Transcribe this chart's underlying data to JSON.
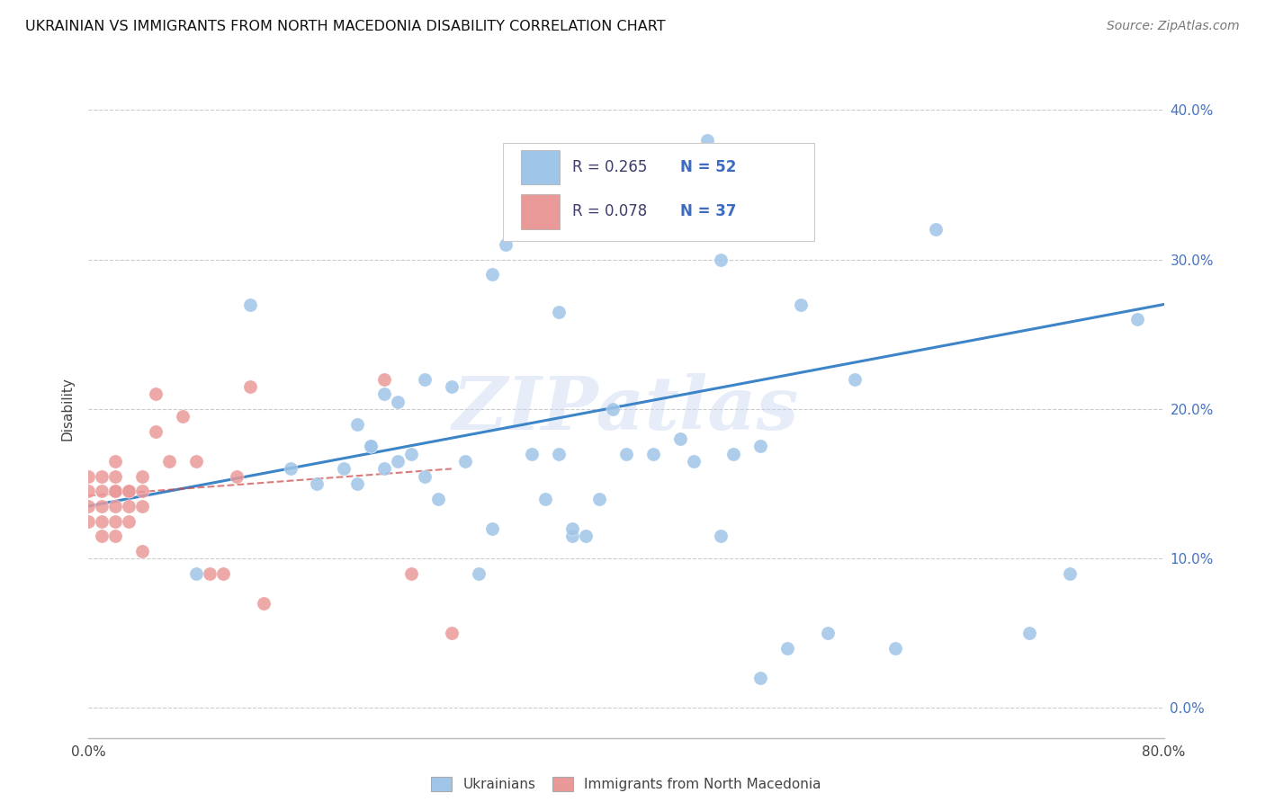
{
  "title": "UKRAINIAN VS IMMIGRANTS FROM NORTH MACEDONIA DISABILITY CORRELATION CHART",
  "source": "Source: ZipAtlas.com",
  "ylabel": "Disability",
  "watermark": "ZIPatlas",
  "xlim": [
    0.0,
    0.8
  ],
  "ylim": [
    -0.02,
    0.42
  ],
  "plot_ylim": [
    0.0,
    0.4
  ],
  "xtick_positions": [
    0.0,
    0.1,
    0.2,
    0.3,
    0.4,
    0.5,
    0.6,
    0.7,
    0.8
  ],
  "ytick_positions": [
    0.0,
    0.1,
    0.2,
    0.3,
    0.4
  ],
  "ytick_labels": [
    "0.0%",
    "10.0%",
    "20.0%",
    "30.0%",
    "40.0%"
  ],
  "blue_color": "#9fc5e8",
  "pink_color": "#ea9999",
  "blue_line_color": "#3d85c8",
  "pink_line_color": "#cc4444",
  "grid_color": "#cccccc",
  "label1": "Ukrainians",
  "label2": "Immigrants from North Macedonia",
  "blue_x": [
    0.08,
    0.12,
    0.15,
    0.17,
    0.19,
    0.2,
    0.2,
    0.21,
    0.21,
    0.22,
    0.22,
    0.23,
    0.23,
    0.24,
    0.25,
    0.25,
    0.26,
    0.27,
    0.28,
    0.29,
    0.3,
    0.3,
    0.31,
    0.33,
    0.34,
    0.35,
    0.36,
    0.36,
    0.38,
    0.39,
    0.4,
    0.43,
    0.44,
    0.45,
    0.46,
    0.47,
    0.48,
    0.5,
    0.52,
    0.53,
    0.55,
    0.57,
    0.6,
    0.63,
    0.7,
    0.73,
    0.78,
    0.35,
    0.42,
    0.5,
    0.37,
    0.47
  ],
  "blue_y": [
    0.09,
    0.27,
    0.16,
    0.15,
    0.16,
    0.15,
    0.19,
    0.175,
    0.175,
    0.16,
    0.21,
    0.165,
    0.205,
    0.17,
    0.155,
    0.22,
    0.14,
    0.215,
    0.165,
    0.09,
    0.12,
    0.29,
    0.31,
    0.17,
    0.14,
    0.265,
    0.115,
    0.12,
    0.14,
    0.2,
    0.17,
    0.35,
    0.18,
    0.165,
    0.38,
    0.3,
    0.17,
    0.02,
    0.04,
    0.27,
    0.05,
    0.22,
    0.04,
    0.32,
    0.05,
    0.09,
    0.26,
    0.17,
    0.17,
    0.175,
    0.115,
    0.115
  ],
  "pink_x": [
    0.0,
    0.0,
    0.0,
    0.0,
    0.01,
    0.01,
    0.01,
    0.01,
    0.01,
    0.02,
    0.02,
    0.02,
    0.02,
    0.02,
    0.02,
    0.02,
    0.03,
    0.03,
    0.03,
    0.03,
    0.04,
    0.04,
    0.04,
    0.04,
    0.05,
    0.05,
    0.06,
    0.07,
    0.08,
    0.09,
    0.1,
    0.11,
    0.12,
    0.13,
    0.22,
    0.24,
    0.27
  ],
  "pink_y": [
    0.155,
    0.145,
    0.135,
    0.125,
    0.155,
    0.145,
    0.135,
    0.125,
    0.115,
    0.165,
    0.155,
    0.145,
    0.145,
    0.135,
    0.125,
    0.115,
    0.145,
    0.145,
    0.135,
    0.125,
    0.155,
    0.145,
    0.135,
    0.105,
    0.21,
    0.185,
    0.165,
    0.195,
    0.165,
    0.09,
    0.09,
    0.155,
    0.215,
    0.07,
    0.22,
    0.09,
    0.05
  ],
  "blue_trend_x": [
    0.0,
    0.8
  ],
  "blue_trend_y": [
    0.135,
    0.27
  ],
  "pink_trend_x": [
    0.0,
    0.27
  ],
  "pink_trend_y": [
    0.142,
    0.16
  ]
}
